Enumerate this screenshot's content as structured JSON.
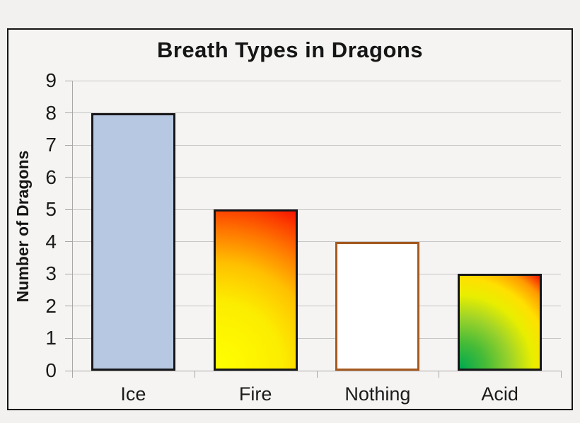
{
  "chart_data": {
    "type": "bar",
    "title": "Breath Types in Dragons",
    "xlabel": "",
    "ylabel": "Number of Dragons",
    "categories": [
      "Ice",
      "Fire",
      "Nothing",
      "Acid"
    ],
    "values": [
      8,
      5,
      4,
      3
    ],
    "ylim": [
      0,
      9
    ],
    "yticks": [
      0,
      1,
      2,
      3,
      4,
      5,
      6,
      7,
      8,
      9
    ],
    "grid": true,
    "legend": false,
    "colors": {
      "page_background": "#f2f1ef",
      "chart_background": "#f5f4f2",
      "frame_border": "#141414",
      "gridline": "#c6c6c6",
      "axis": "#a8a8a8",
      "text": "#1b1b1b"
    },
    "bars": [
      {
        "category": "Ice",
        "value": 8,
        "fill": {
          "type": "solid",
          "color": "#b7c9e2"
        },
        "border_color": "#17171a"
      },
      {
        "category": "Fire",
        "value": 5,
        "fill": {
          "type": "radial_bottom_left",
          "stops": [
            {
              "color": "#ffff00",
              "pos": 0
            },
            {
              "color": "#fced00",
              "pos": 38
            },
            {
              "color": "#ffc000",
              "pos": 60
            },
            {
              "color": "#ff7800",
              "pos": 78
            },
            {
              "color": "#fc3f00",
              "pos": 91
            },
            {
              "color": "#f81300",
              "pos": 100
            }
          ]
        },
        "border_color": "#17171a"
      },
      {
        "category": "Nothing",
        "value": 4,
        "fill": {
          "type": "solid",
          "color": "#ffffff"
        },
        "border_color": "#a5591f"
      },
      {
        "category": "Acid",
        "value": 3,
        "fill": {
          "type": "radial_bottom_left",
          "stops": [
            {
              "color": "#00a94f",
              "pos": 0
            },
            {
              "color": "#49bc37",
              "pos": 22
            },
            {
              "color": "#9ed32a",
              "pos": 42
            },
            {
              "color": "#e8ee00",
              "pos": 60
            },
            {
              "color": "#ffe000",
              "pos": 74
            },
            {
              "color": "#ff9a00",
              "pos": 88
            },
            {
              "color": "#f51400",
              "pos": 100
            }
          ]
        },
        "border_color": "#17171a"
      }
    ]
  }
}
